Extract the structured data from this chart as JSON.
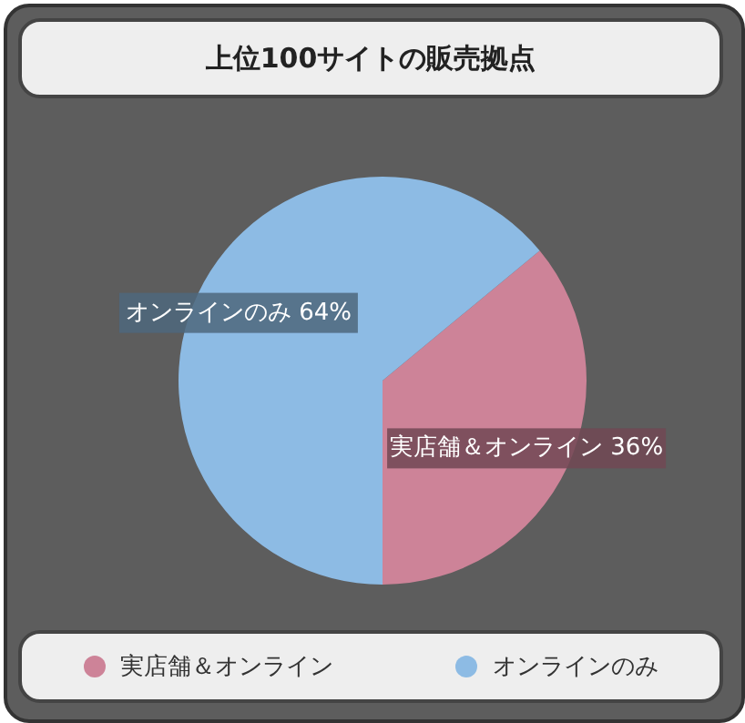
{
  "chart_data": {
    "type": "pie",
    "title": "上位100サイトの販売拠点",
    "categories": [
      "実店舗＆オンライン",
      "オンラインのみ"
    ],
    "values": [
      36,
      64
    ],
    "colors": [
      "#cd8398",
      "#8dbbe4"
    ],
    "value_labels": [
      "実店舗＆オンライン 36%",
      "オンラインのみ 64%"
    ],
    "legend": "bottom"
  }
}
